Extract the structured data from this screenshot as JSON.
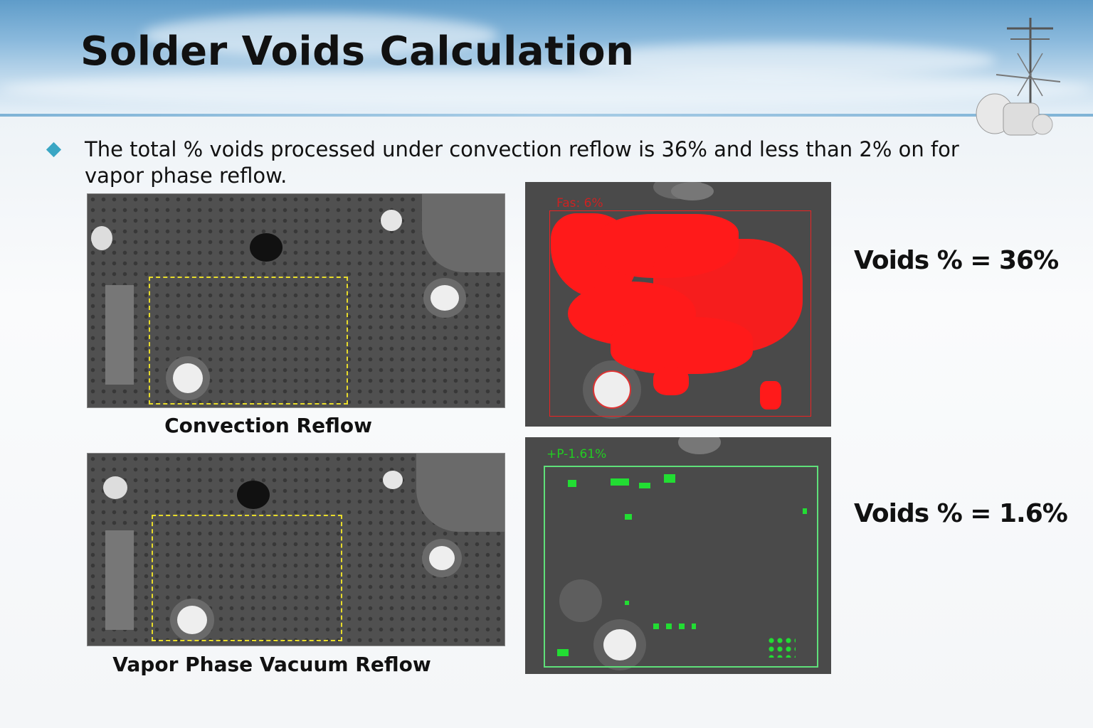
{
  "slide": {
    "title": "Solder Voids Calculation",
    "bullet": "The total % voids processed under convection reflow is 36% and less than 2% on for vapor phase reflow.",
    "bullet_icon": "diamond-bullet-icon",
    "accent_color": "#3aa6c4"
  },
  "panels": [
    {
      "caption": "Convection Reflow",
      "overlay_label": "Fas: 6%",
      "result": "Voids % = 36%",
      "overlay_color": "#ff1a1a"
    },
    {
      "caption": "Vapor Phase Vacuum Reflow",
      "overlay_label": "+P-1.61%",
      "result": "Voids % = 1.6%",
      "overlay_color": "#22dd33"
    }
  ]
}
